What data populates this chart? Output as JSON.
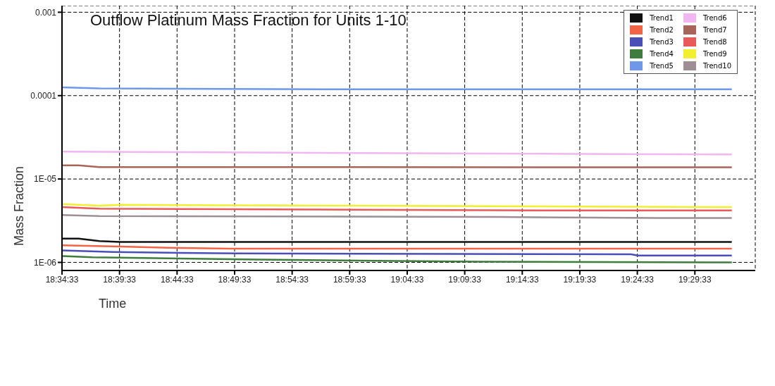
{
  "chart_data": {
    "type": "line",
    "title": "Outflow Platinum Mass Fraction for Units 1-10",
    "xlabel": "Time",
    "ylabel": "Mass Fraction",
    "log": "y",
    "grid": true,
    "legend": "top right",
    "line_style": "solid",
    "marker": "none",
    "xlim": [
      18.575833,
      19.58
    ],
    "ylim": [
      8e-07,
      0.0012
    ],
    "xticks": [
      {
        "value": 18.575833,
        "label": "18:34:33"
      },
      {
        "value": 18.659167,
        "label": "18:39:33"
      },
      {
        "value": 18.7425,
        "label": "18:44:33"
      },
      {
        "value": 18.825833,
        "label": "18:49:33"
      },
      {
        "value": 18.909167,
        "label": "18:54:33"
      },
      {
        "value": 18.9925,
        "label": "18:59:33"
      },
      {
        "value": 19.075833,
        "label": "19:04:33"
      },
      {
        "value": 19.159167,
        "label": "19:09:33"
      },
      {
        "value": 19.2425,
        "label": "19:14:33"
      },
      {
        "value": 19.325833,
        "label": "19:19:33"
      },
      {
        "value": 19.409167,
        "label": "19:24:33"
      },
      {
        "value": 19.4925,
        "label": "19:29:33"
      }
    ],
    "yticks": [
      {
        "value": 1e-06,
        "label": "1E-06"
      },
      {
        "value": 1e-05,
        "label": "1E-05"
      },
      0.0001,
      0.001
    ],
    "series": [
      {
        "name": "Trend1",
        "color": "#111111",
        "x": [
          18.575833,
          18.6,
          18.63,
          18.66,
          19.546
        ],
        "values": [
          1.93e-06,
          1.93e-06,
          1.8e-06,
          1.76e-06,
          1.76e-06
        ]
      },
      {
        "name": "Trend2",
        "color": "#f26446",
        "x": [
          18.575833,
          18.66,
          18.73,
          18.82,
          19.546
        ],
        "values": [
          1.6e-06,
          1.55e-06,
          1.5e-06,
          1.46e-06,
          1.46e-06
        ]
      },
      {
        "name": "Trend3",
        "color": "#4a4fb8",
        "x": [
          18.575833,
          18.65,
          18.83,
          19.4,
          19.41,
          19.546
        ],
        "values": [
          1.39e-06,
          1.33e-06,
          1.28e-06,
          1.25e-06,
          1.21e-06,
          1.21e-06
        ]
      },
      {
        "name": "Trend4",
        "color": "#3f7d3f",
        "x": [
          18.575833,
          18.62,
          18.86,
          19.18,
          19.546
        ],
        "values": [
          1.19e-06,
          1.15e-06,
          1.08e-06,
          1.02e-06,
          1e-06
        ]
      },
      {
        "name": "Trend5",
        "color": "#6f99e8",
        "x": [
          18.575833,
          18.63,
          18.95,
          19.546
        ],
        "values": [
          0.000126,
          0.000122,
          0.000119,
          0.000119
        ]
      },
      {
        "name": "Trend6",
        "color": "#f2b6f0",
        "x": [
          18.575833,
          19.0,
          19.546
        ],
        "values": [
          2.13e-05,
          2.05e-05,
          1.97e-05
        ]
      },
      {
        "name": "Trend7",
        "color": "#a9645a",
        "x": [
          18.575833,
          18.6,
          18.63,
          19.546
        ],
        "values": [
          1.46e-05,
          1.46e-05,
          1.39e-05,
          1.38e-05
        ]
      },
      {
        "name": "Trend8",
        "color": "#e85a5a",
        "x": [
          18.575833,
          18.63,
          18.95,
          19.27,
          19.546
        ],
        "values": [
          4.6e-06,
          4.4e-06,
          4.3e-06,
          4.2e-06,
          4.2e-06
        ]
      },
      {
        "name": "Trend9",
        "color": "#f2ee30",
        "x": [
          18.575833,
          18.63,
          18.66,
          19.546
        ],
        "values": [
          5e-06,
          4.8e-06,
          4.9e-06,
          4.6e-06
        ]
      },
      {
        "name": "Trend10",
        "color": "#9d8f93",
        "x": [
          18.575833,
          18.63,
          19.21,
          19.44,
          19.546
        ],
        "values": [
          3.7e-06,
          3.6e-06,
          3.5e-06,
          3.4e-06,
          3.4e-06
        ]
      }
    ]
  }
}
